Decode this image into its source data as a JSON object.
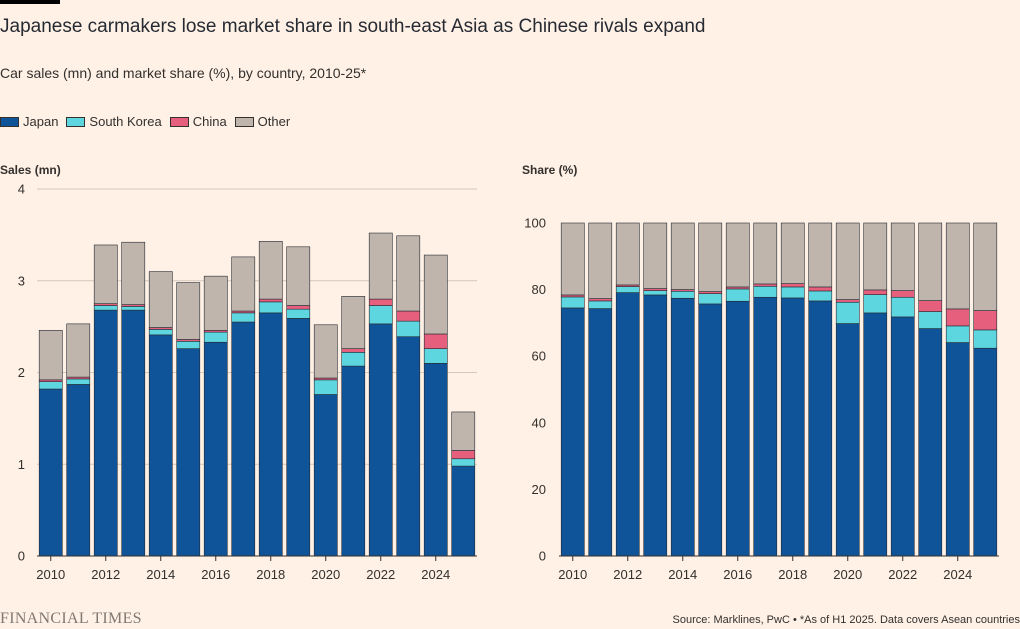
{
  "title": "Japanese carmakers lose market share in south-east Asia as Chinese rivals expand",
  "subtitle": "Car sales (mn) and market share (%), by country, 2010-25*",
  "legend": [
    {
      "label": "Japan",
      "color": "#0F5499"
    },
    {
      "label": "South Korea",
      "color": "#5DD6E0"
    },
    {
      "label": "China",
      "color": "#E6607E"
    },
    {
      "label": "Other",
      "color": "#BFB5AC"
    }
  ],
  "footer": {
    "logo": "FINANCIAL TIMES",
    "source": "Source: Marklines, PwC • *As of H1 2025. Data covers Asean countries"
  },
  "chart_data": [
    {
      "type": "bar",
      "stacked": true,
      "ylabel": "Sales (mn)",
      "ylim": [
        0,
        4
      ],
      "yticks": [
        0,
        1,
        2,
        3,
        4
      ],
      "grid": true,
      "categories": [
        "2010",
        "2011",
        "2012",
        "2013",
        "2014",
        "2015",
        "2016",
        "2017",
        "2018",
        "2019",
        "2020",
        "2021",
        "2022",
        "2023",
        "2024",
        "2025"
      ],
      "xtick_labels": [
        "2010",
        "2012",
        "2014",
        "2016",
        "2018",
        "2020",
        "2022",
        "2024"
      ],
      "series": [
        {
          "name": "Japan",
          "color": "#0F5499",
          "values": [
            1.82,
            1.87,
            2.68,
            2.68,
            2.41,
            2.26,
            2.33,
            2.55,
            2.65,
            2.59,
            1.76,
            2.07,
            2.53,
            2.39,
            2.1,
            0.98
          ]
        },
        {
          "name": "South Korea",
          "color": "#5DD6E0",
          "values": [
            0.08,
            0.06,
            0.05,
            0.04,
            0.06,
            0.08,
            0.11,
            0.1,
            0.12,
            0.1,
            0.16,
            0.15,
            0.2,
            0.17,
            0.16,
            0.08
          ]
        },
        {
          "name": "China",
          "color": "#E6607E",
          "values": [
            0.02,
            0.02,
            0.02,
            0.02,
            0.02,
            0.02,
            0.02,
            0.02,
            0.03,
            0.04,
            0.02,
            0.04,
            0.07,
            0.11,
            0.16,
            0.09
          ]
        },
        {
          "name": "Other",
          "color": "#BFB5AC",
          "values": [
            0.54,
            0.58,
            0.64,
            0.68,
            0.61,
            0.62,
            0.59,
            0.59,
            0.63,
            0.64,
            0.58,
            0.57,
            0.72,
            0.82,
            0.86,
            0.42
          ]
        }
      ]
    },
    {
      "type": "bar",
      "stacked": true,
      "ylabel": "Share (%)",
      "ylim": [
        0,
        100
      ],
      "yticks": [
        0,
        20,
        40,
        60,
        80,
        100
      ],
      "grid": false,
      "categories": [
        "2010",
        "2011",
        "2012",
        "2013",
        "2014",
        "2015",
        "2016",
        "2017",
        "2018",
        "2019",
        "2020",
        "2021",
        "2022",
        "2023",
        "2024",
        "2025"
      ],
      "xtick_labels": [
        "2010",
        "2012",
        "2014",
        "2016",
        "2018",
        "2020",
        "2022",
        "2024"
      ],
      "series": [
        {
          "name": "Japan",
          "color": "#0F5499",
          "values": [
            74.5,
            74.3,
            79.1,
            78.4,
            77.4,
            75.7,
            76.5,
            77.7,
            77.5,
            76.6,
            69.8,
            73.0,
            71.8,
            68.3,
            64.1,
            62.4
          ]
        },
        {
          "name": "South Korea",
          "color": "#5DD6E0",
          "values": [
            3.3,
            2.3,
            1.8,
            1.3,
            2.1,
            3.1,
            3.7,
            3.3,
            3.3,
            3.0,
            6.4,
            5.5,
            5.9,
            5.1,
            5.0,
            5.5
          ]
        },
        {
          "name": "China",
          "color": "#E6607E",
          "values": [
            0.6,
            0.7,
            0.5,
            0.6,
            0.5,
            0.6,
            0.6,
            0.7,
            1.0,
            1.2,
            0.8,
            1.4,
            2.0,
            3.3,
            5.1,
            5.8
          ]
        },
        {
          "name": "Other",
          "color": "#BFB5AC",
          "values": [
            21.6,
            22.7,
            18.6,
            19.7,
            20.0,
            20.6,
            19.2,
            18.3,
            18.2,
            19.2,
            23.0,
            20.1,
            20.3,
            23.3,
            25.8,
            26.3
          ]
        }
      ]
    }
  ]
}
